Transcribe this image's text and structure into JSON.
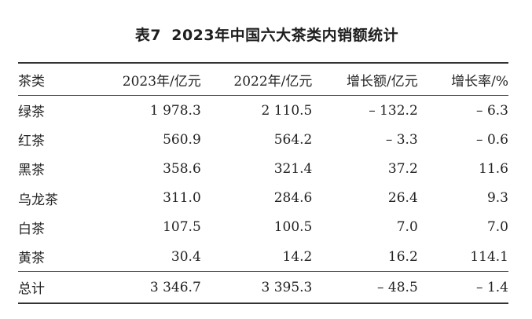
{
  "caption": {
    "label": "表7",
    "title": "2023年中国六大茶类内销额统计"
  },
  "table": {
    "headers": {
      "category": "茶类",
      "sales_2023": "2023年/亿元",
      "sales_2022": "2022年/亿元",
      "growth_amount": "增长额/亿元",
      "growth_rate": "增长率/%"
    },
    "rows": [
      {
        "category": "绿茶",
        "sales_2023": "1 978.3",
        "sales_2022": "2 110.5",
        "growth_amount": "– 132.2",
        "growth_rate": "– 6.3"
      },
      {
        "category": "红茶",
        "sales_2023": "560.9",
        "sales_2022": "564.2",
        "growth_amount": "– 3.3",
        "growth_rate": "– 0.6"
      },
      {
        "category": "黑茶",
        "sales_2023": "358.6",
        "sales_2022": "321.4",
        "growth_amount": "37.2",
        "growth_rate": "11.6"
      },
      {
        "category": "乌龙茶",
        "sales_2023": "311.0",
        "sales_2022": "284.6",
        "growth_amount": "26.4",
        "growth_rate": "9.3"
      },
      {
        "category": "白茶",
        "sales_2023": "107.5",
        "sales_2022": "100.5",
        "growth_amount": "7.0",
        "growth_rate": "7.0"
      },
      {
        "category": "黄茶",
        "sales_2023": "30.4",
        "sales_2022": "14.2",
        "growth_amount": "16.2",
        "growth_rate": "114.1"
      }
    ],
    "total": {
      "category": "总计",
      "sales_2023": "3 346.7",
      "sales_2022": "3 395.3",
      "growth_amount": "– 48.5",
      "growth_rate": "– 1.4"
    }
  }
}
